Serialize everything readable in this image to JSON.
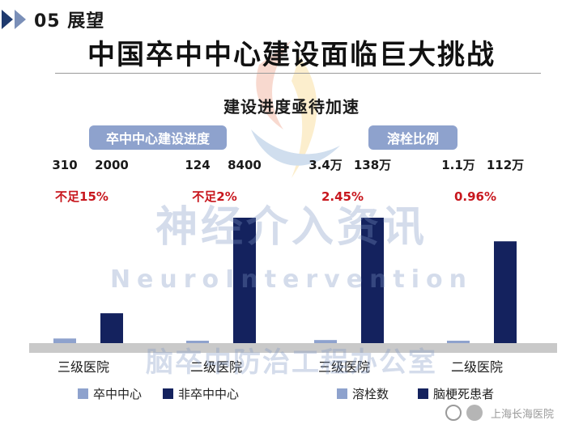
{
  "header": {
    "section_label": "05 展望",
    "title": "中国卒中中心建设面临巨大挑战",
    "subtitle": "建设进度亟待加速"
  },
  "groups": {
    "left_label": "卒中中心建设进度",
    "right_label": "溶栓比例"
  },
  "watermark": {
    "line1": "神经介入资讯",
    "line2": "NeuroIntervention",
    "line3": "脑卒中防治工程办公室"
  },
  "legend": {
    "left": [
      "卒中中心",
      "非卒中中心"
    ],
    "right": [
      "溶栓数",
      "脑梗死患者"
    ]
  },
  "footer": {
    "source": "上海长海医院"
  },
  "colors": {
    "light_bar": "#8ea2cd",
    "dark_bar": "#14225e",
    "pct_red": "#c8171e",
    "group_label_bg": "#8ea2cd"
  },
  "chart_data": [
    {
      "type": "bar",
      "title": "卒中中心建设进度",
      "categories": [
        "三级医院",
        "二级医院"
      ],
      "series": [
        {
          "name": "卒中中心",
          "values": [
            310,
            124
          ]
        },
        {
          "name": "非卒中中心",
          "values": [
            2000,
            8400
          ]
        }
      ],
      "value_labels": [
        [
          "310",
          "2000"
        ],
        [
          "124",
          "8400"
        ]
      ],
      "annotations": [
        "不足15%",
        "不足2%"
      ]
    },
    {
      "type": "bar",
      "title": "溶栓比例",
      "categories": [
        "三级医院",
        "二级医院"
      ],
      "series": [
        {
          "name": "溶栓数",
          "values": [
            34000,
            11000
          ]
        },
        {
          "name": "脑梗死患者",
          "values": [
            1380000,
            1120000
          ]
        }
      ],
      "value_labels": [
        [
          "3.4万",
          "138万"
        ],
        [
          "1.1万",
          "112万"
        ]
      ],
      "annotations": [
        "2.45%",
        "0.96%"
      ]
    }
  ]
}
